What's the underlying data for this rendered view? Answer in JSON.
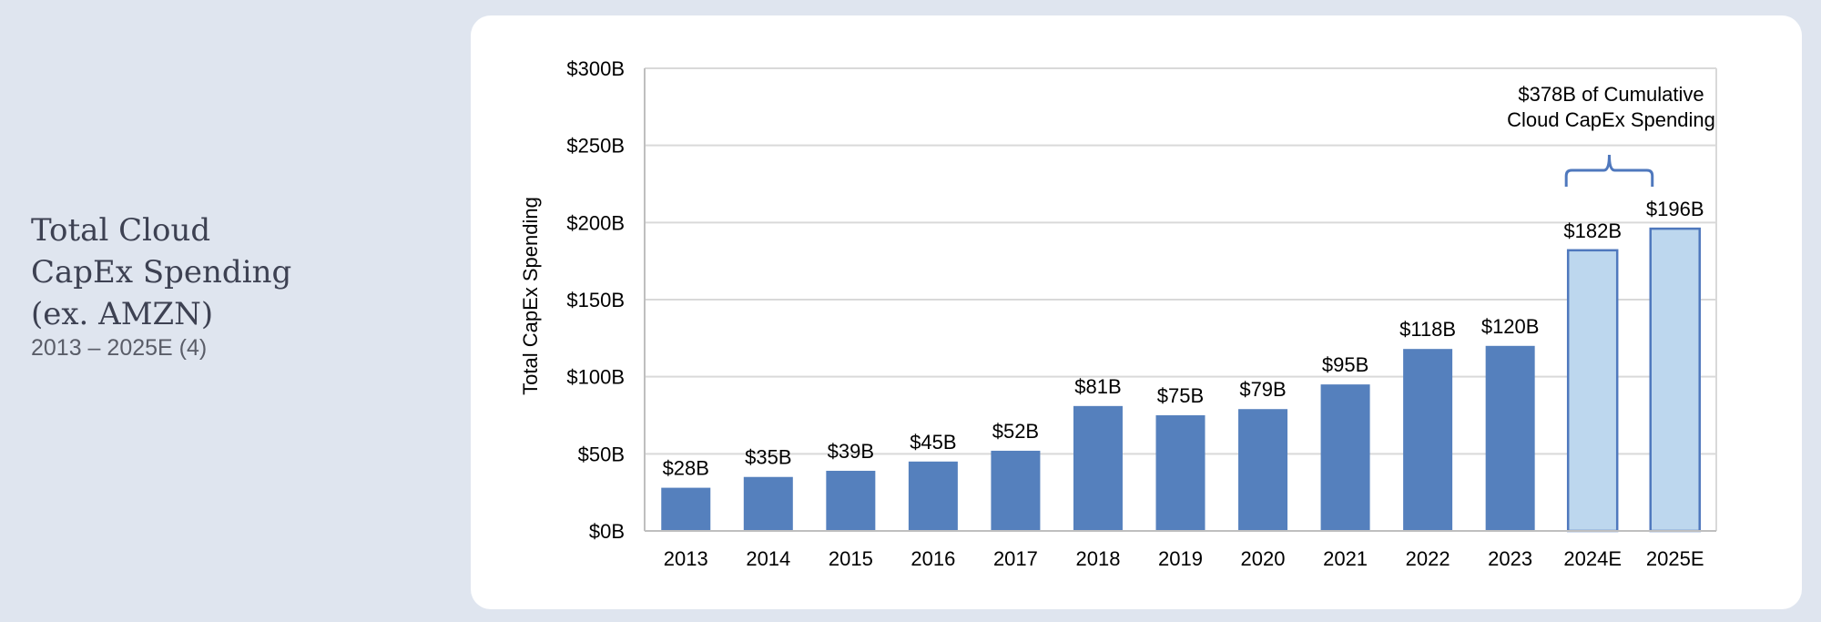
{
  "side": {
    "title_lines": [
      "Total Cloud",
      "CapEx Spending",
      "(ex. AMZN)"
    ],
    "subtitle": "2013 – 2025E (4)"
  },
  "chart_data": {
    "type": "bar",
    "title": "",
    "xlabel": "",
    "ylabel": "Total CapEx Spending",
    "ylim": [
      0,
      300
    ],
    "y_ticks": [
      0,
      50,
      100,
      150,
      200,
      250,
      300
    ],
    "y_tick_labels": [
      "$0B",
      "$50B",
      "$100B",
      "$150B",
      "$200B",
      "$250B",
      "$300B"
    ],
    "grid": true,
    "categories": [
      "2013",
      "2014",
      "2015",
      "2016",
      "2017",
      "2018",
      "2019",
      "2020",
      "2021",
      "2022",
      "2023",
      "2024E",
      "2025E"
    ],
    "values": [
      28,
      35,
      39,
      45,
      52,
      81,
      75,
      79,
      95,
      118,
      120,
      182,
      196
    ],
    "data_labels": [
      "$28B",
      "$35B",
      "$39B",
      "$45B",
      "$52B",
      "$81B",
      "$75B",
      "$79B",
      "$95B",
      "$118B",
      "$120B",
      "$182B",
      "$196B"
    ],
    "estimate": [
      false,
      false,
      false,
      false,
      false,
      false,
      false,
      false,
      false,
      false,
      false,
      true,
      true
    ],
    "annotation": {
      "lines": [
        "$378B of Cumulative",
        "Cloud CapEx Spending"
      ],
      "spans": [
        "2024E",
        "2025E"
      ]
    },
    "colors": {
      "actual": "#5580bd",
      "estimate_fill": "#bdd7ee",
      "estimate_stroke": "#4f78bd",
      "bracket": "#4f78bd",
      "grid": "#d9d9d9",
      "axis": "#bfbfbf"
    }
  }
}
